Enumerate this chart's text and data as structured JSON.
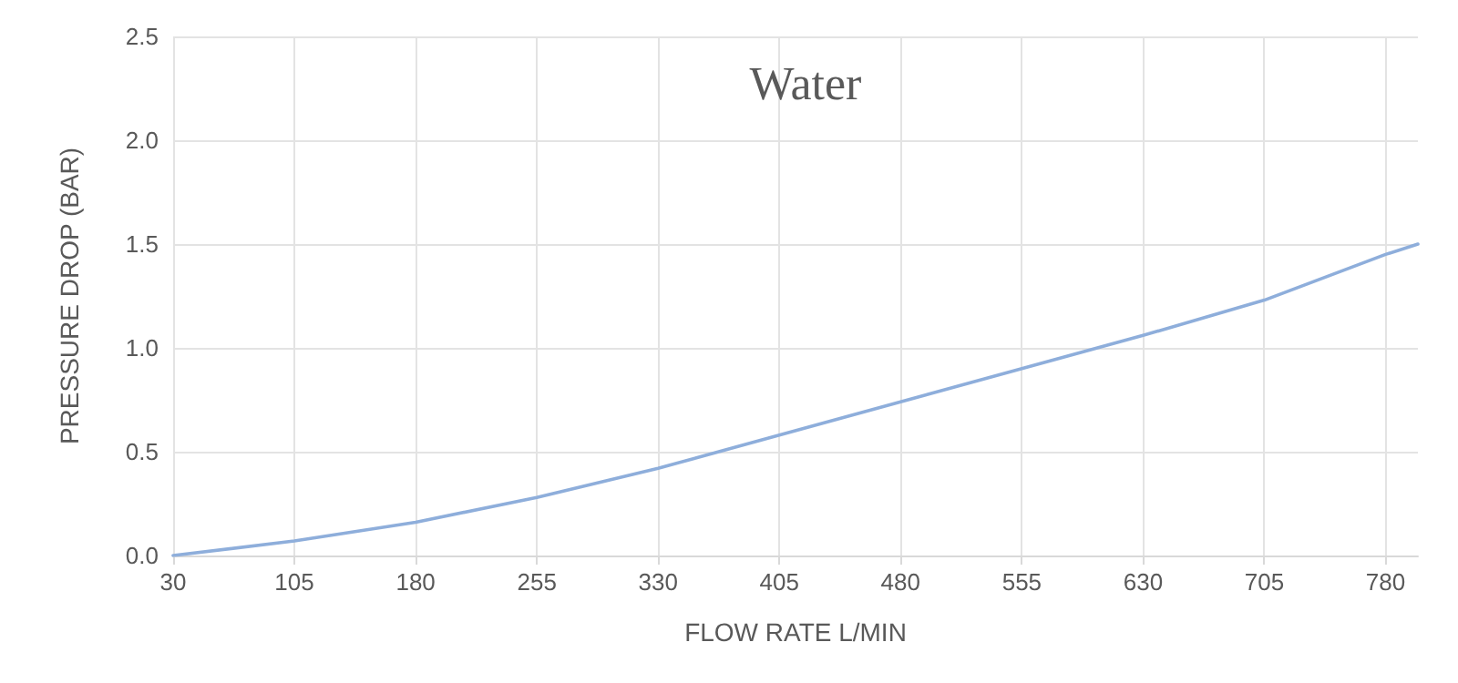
{
  "chart_data": {
    "type": "line",
    "title": "Water",
    "xlabel": "FLOW RATE L/MIN",
    "ylabel": "PRESSURE DROP (BAR)",
    "x": [
      30,
      105,
      180,
      255,
      330,
      405,
      480,
      555,
      630,
      705,
      780,
      800
    ],
    "series": [
      {
        "color": "#8eaedb",
        "values": [
          0,
          0.07,
          0.16,
          0.28,
          0.42,
          0.58,
          0.74,
          0.9,
          1.06,
          1.23,
          1.45,
          1.5
        ]
      }
    ],
    "xlim": [
      30,
      800
    ],
    "xticks": [
      30,
      105,
      180,
      255,
      330,
      405,
      480,
      555,
      630,
      705,
      780
    ],
    "ylim": [
      0,
      2.5
    ],
    "yticks": [
      {
        "value": 0,
        "label": "0.0"
      },
      0.5,
      {
        "value": 1,
        "label": "1.0"
      },
      1.5,
      {
        "value": 2,
        "label": "2.0"
      },
      2.5
    ],
    "grid": true,
    "marker": "none",
    "line_style": "solid"
  }
}
